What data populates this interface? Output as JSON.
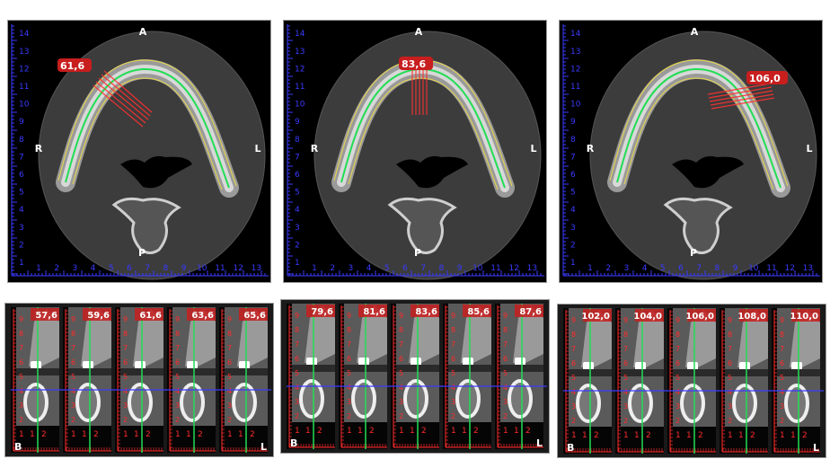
{
  "colors": {
    "ruler_axial": "#3a3aff",
    "ruler_cross": "#ff2a2a",
    "arch_centerline": "#22dd55",
    "arch_outline": "#e8d84a",
    "section_lines": "#ff3030",
    "label_box": "#c81e1e",
    "reference_line": "#3a3aff"
  },
  "axial_views": [
    {
      "section_label": "61,6",
      "orientation": {
        "anterior": "A",
        "posterior": "P",
        "right": "R",
        "left": "L"
      },
      "section_position": "right-anterior"
    },
    {
      "section_label": "83,6",
      "orientation": {
        "anterior": "A",
        "posterior": "P",
        "right": "R",
        "left": "L"
      },
      "section_position": "midline-anterior"
    },
    {
      "section_label": "106,0",
      "orientation": {
        "anterior": "A",
        "posterior": "P",
        "right": "R",
        "left": "L"
      },
      "section_position": "left-anterior"
    }
  ],
  "axial_ruler": {
    "vertical_ticks": [
      "1",
      "2",
      "3",
      "4",
      "5",
      "6",
      "7",
      "8",
      "9",
      "10",
      "11",
      "12",
      "13",
      "14"
    ],
    "horizontal_ticks": [
      "1",
      "2",
      "3",
      "4",
      "5",
      "6",
      "7",
      "8",
      "9",
      "10",
      "11",
      "12",
      "13"
    ]
  },
  "cross_section_strips": [
    {
      "slices": [
        "57,6",
        "59,6",
        "61,6",
        "63,6",
        "65,6"
      ],
      "buccal_label": "B",
      "lingual_label": "L"
    },
    {
      "slices": [
        "79,6",
        "81,6",
        "83,6",
        "85,6",
        "87,6"
      ],
      "buccal_label": "B",
      "lingual_label": "L"
    },
    {
      "slices": [
        "102,0",
        "104,0",
        "106,0",
        "108,0",
        "110,0"
      ],
      "buccal_label": "B",
      "lingual_label": "L"
    }
  ],
  "cross_ruler": {
    "vertical_ticks": [
      "2",
      "3",
      "4",
      "5",
      "6",
      "7",
      "8",
      "9"
    ],
    "horizontal_ticks": [
      "1",
      "1",
      "2"
    ]
  }
}
